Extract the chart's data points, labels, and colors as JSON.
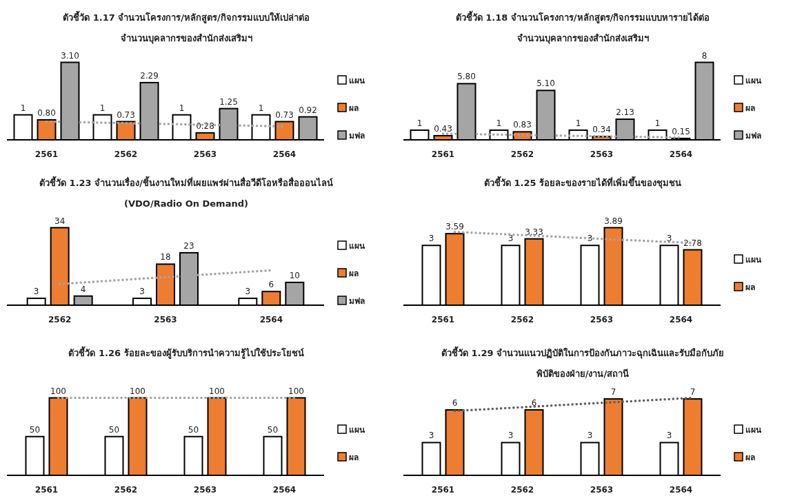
{
  "chart_data": [
    {
      "type": "bar",
      "title": "ตัวชี้วัด 1.17 จำนวนโครงการ/หลักสูตร/กิจกรรมแบบให้เปล่าต่อ",
      "subtitle": "จำนวนบุคลากรของสำนักส่งเสริมฯ",
      "categories": [
        "2561",
        "2562",
        "2563",
        "2564"
      ],
      "tick_labels": "x",
      "legend": "right",
      "series": [
        {
          "name": "แผน",
          "color": "#ffffff",
          "values": [
            1,
            1,
            1,
            1
          ],
          "value_labels": [
            "1",
            "1",
            "1",
            "1"
          ]
        },
        {
          "name": "ผล",
          "color": "#ed7d31",
          "values": [
            0.8,
            0.73,
            0.28,
            0.73
          ],
          "value_labels": [
            "0.80",
            "0.73",
            "0.28",
            "0.73"
          ]
        },
        {
          "name": "มฟล",
          "color": "#a5a5a5",
          "values": [
            3.1,
            2.29,
            1.25,
            0.92
          ],
          "value_labels": [
            "3.10",
            "2.29",
            "1.25",
            "0.92"
          ]
        },
        {
          "type": "line",
          "color": "#a5a5a5",
          "line_style": "dotted",
          "values": [
            0.73,
            0.67,
            0.6,
            0.54
          ]
        }
      ]
    },
    {
      "type": "bar",
      "title": "ตัวชี้วัด 1.18 จำนวนโครงการ/หลักสูตร/กิจกรรมแบบหารายได้ต่อ",
      "subtitle": "จำนวนบุคลากรของสำนักส่งเสริมฯ",
      "categories": [
        "2561",
        "2562",
        "2563",
        "2564"
      ],
      "tick_labels": "x",
      "legend": "right",
      "series": [
        {
          "name": "แผน",
          "color": "#ffffff",
          "values": [
            1,
            1,
            1,
            1
          ],
          "value_labels": [
            "1",
            "1",
            "1",
            "1"
          ]
        },
        {
          "name": "ผล",
          "color": "#ed7d31",
          "values": [
            0.43,
            0.83,
            0.34,
            0.15
          ],
          "value_labels": [
            "0.43",
            "0.83",
            "0.34",
            "0.15"
          ]
        },
        {
          "name": "มฟล",
          "color": "#a5a5a5",
          "values": [
            5.8,
            5.1,
            2.13,
            8
          ],
          "value_labels": [
            "5.80",
            "5.10",
            "2.13",
            "8"
          ]
        },
        {
          "type": "line",
          "color": "#a5a5a5",
          "line_style": "dotted",
          "values": [
            0.64,
            0.5,
            0.37,
            0.24
          ]
        }
      ]
    },
    {
      "type": "bar",
      "title": "ตัวชี้วัด 1.23 จำนวนเรื่อง/ชิ้นงานใหม่ที่เผยแพร่ผ่านสื่อวีดีโอหรือสื่อออนไลน์",
      "subtitle": "(VDO/Radio On Demand)",
      "categories": [
        "2562",
        "2563",
        "2564"
      ],
      "tick_labels": "x",
      "legend": "right",
      "series": [
        {
          "name": "แผน",
          "color": "#ffffff",
          "values": [
            3,
            3,
            3
          ],
          "value_labels": [
            "3",
            "3",
            "3"
          ]
        },
        {
          "name": "ผล",
          "color": "#ed7d31",
          "values": [
            34,
            18,
            6
          ],
          "value_labels": [
            "34",
            "18",
            "6"
          ]
        },
        {
          "name": "มฟล",
          "color": "#a5a5a5",
          "values": [
            4,
            23,
            10
          ],
          "value_labels": [
            "4",
            "23",
            "10"
          ]
        },
        {
          "type": "line",
          "color": "#a5a5a5",
          "line_style": "dotted",
          "values": [
            9.3,
            12.3,
            15.3
          ]
        }
      ]
    },
    {
      "type": "bar",
      "title": "ตัวชี้วัด 1.25 ร้อยละของรายได้ที่เพิ่มขึ้นของชุมชน",
      "categories": [
        "2561",
        "2562",
        "2563",
        "2564"
      ],
      "tick_labels": "x",
      "legend": "right",
      "series": [
        {
          "name": "แผน",
          "color": "#ffffff",
          "values": [
            3,
            3,
            3,
            3
          ],
          "value_labels": [
            "3",
            "3",
            "3",
            "3"
          ]
        },
        {
          "name": "ผล",
          "color": "#ed7d31",
          "values": [
            3.59,
            3.33,
            3.89,
            2.78
          ],
          "value_labels": [
            "3.59",
            "3.33",
            "3.89",
            "2.78"
          ]
        },
        {
          "type": "line",
          "color": "#a5a5a5",
          "line_style": "dotted",
          "values": [
            3.68,
            3.49,
            3.3,
            3.12
          ]
        }
      ]
    },
    {
      "type": "bar",
      "title": "ตัวชี้วัด 1.26 ร้อยละของผู้รับบริการนำความรู้ไปใช้ประโยชน์",
      "categories": [
        "2561",
        "2562",
        "2563",
        "2564"
      ],
      "tick_labels": "x",
      "legend": "right",
      "series": [
        {
          "name": "แผน",
          "color": "#ffffff",
          "values": [
            50,
            50,
            50,
            50
          ],
          "value_labels": [
            "50",
            "50",
            "50",
            "50"
          ]
        },
        {
          "name": "ผล",
          "color": "#ed7d31",
          "values": [
            100,
            100,
            100,
            100
          ],
          "value_labels": [
            "100",
            "100",
            "100",
            "100"
          ]
        },
        {
          "type": "line",
          "color": "#a5a5a5",
          "line_style": "dotted",
          "values": [
            100,
            100,
            100,
            100
          ]
        }
      ]
    },
    {
      "type": "bar",
      "title": "ตัวชี้วัด 1.29 จำนวนแนวปฏิบัติในการป้องกันภาวะฉุกเฉินและรับมือกับภัย",
      "subtitle": "พิบัติของฝ่าย/งาน/สถานี",
      "categories": [
        "2561",
        "2562",
        "2563",
        "2564"
      ],
      "tick_labels": "x",
      "legend": "right",
      "series": [
        {
          "name": "แผน",
          "color": "#ffffff",
          "values": [
            3,
            3,
            3,
            3
          ],
          "value_labels": [
            "3",
            "3",
            "3",
            "3"
          ]
        },
        {
          "name": "ผล",
          "color": "#ed7d31",
          "values": [
            6,
            6,
            7,
            7
          ],
          "value_labels": [
            "6",
            "6",
            "7",
            "7"
          ]
        },
        {
          "type": "line",
          "color": "#5f5f5f",
          "line_style": "dotted",
          "values": [
            5.9,
            6.3,
            6.7,
            7.1
          ]
        }
      ]
    }
  ]
}
